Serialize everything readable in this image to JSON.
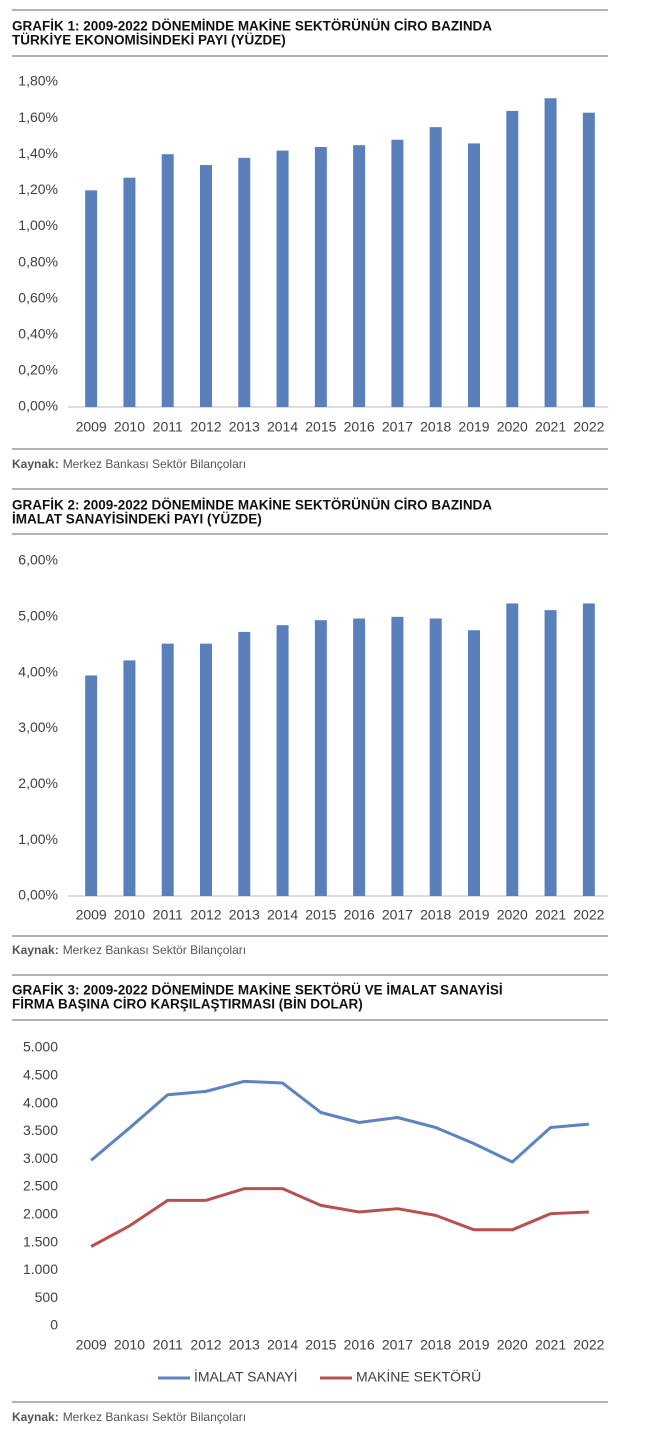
{
  "chart_data": [
    {
      "type": "bar",
      "title": [
        "GRAFİK 1: 2009-2022 DÖNEMİNDE MAKİNE SEKTÖRÜNÜN CİRO BAZINDA",
        "TÜRKİYE EKONOMİSİNDEKİ PAYI (YÜZDE)"
      ],
      "categories": [
        "2009",
        "2010",
        "2011",
        "2012",
        "2013",
        "2014",
        "2015",
        "2016",
        "2017",
        "2018",
        "2019",
        "2020",
        "2021",
        "2022"
      ],
      "values": [
        1.2,
        1.27,
        1.4,
        1.34,
        1.38,
        1.42,
        1.44,
        1.45,
        1.48,
        1.55,
        1.46,
        1.64,
        1.71,
        1.63
      ],
      "color": "#5a80bb",
      "ylim": [
        0,
        1.8
      ],
      "yticks": [
        {
          "value": 0,
          "label": "0,00%"
        },
        {
          "value": 0.2,
          "label": "0,20%"
        },
        {
          "value": 0.4,
          "label": "0,40%"
        },
        {
          "value": 0.6,
          "label": "0,60%"
        },
        {
          "value": 0.8,
          "label": "0,80%"
        },
        {
          "value": 1.0,
          "label": "1,00%"
        },
        {
          "value": 1.2,
          "label": "1,20%"
        },
        {
          "value": 1.4,
          "label": "1,40%"
        },
        {
          "value": 1.6,
          "label": "1,60%"
        },
        {
          "value": 1.8,
          "label": "1,80%"
        }
      ],
      "source": {
        "label": "Kaynak:",
        "text": "Merkez Bankası Sektör Bilançoları"
      }
    },
    {
      "type": "bar",
      "title": [
        "GRAFİK 2: 2009-2022 DÖNEMİNDE MAKİNE SEKTÖRÜNÜN CİRO BAZINDA",
        "İMALAT SANAYİSİNDEKİ PAYI (YÜZDE)"
      ],
      "categories": [
        "2009",
        "2010",
        "2011",
        "2012",
        "2013",
        "2014",
        "2015",
        "2016",
        "2017",
        "2018",
        "2019",
        "2020",
        "2021",
        "2022"
      ],
      "values": [
        3.95,
        4.22,
        4.52,
        4.52,
        4.73,
        4.85,
        4.94,
        4.97,
        5.0,
        4.97,
        4.76,
        5.24,
        5.12,
        5.24
      ],
      "color": "#5a80bb",
      "ylim": [
        0,
        6
      ],
      "yticks": [
        {
          "value": 0,
          "label": "0,00%"
        },
        {
          "value": 1,
          "label": "1,00%"
        },
        {
          "value": 2,
          "label": "2,00%"
        },
        {
          "value": 3,
          "label": "3,00%"
        },
        {
          "value": 4,
          "label": "4,00%"
        },
        {
          "value": 5,
          "label": "5,00%"
        },
        {
          "value": 6,
          "label": "6,00%"
        }
      ],
      "source": {
        "label": "Kaynak:",
        "text": "Merkez Bankası Sektör Bilançoları"
      }
    },
    {
      "type": "line",
      "title": [
        "GRAFİK 3: 2009-2022 DÖNEMİNDE MAKİNE SEKTÖRÜ VE İMALAT SANAYİSİ",
        "FİRMA BAŞINA CİRO KARŞILAŞTIRMASI (BİN DOLAR)"
      ],
      "categories": [
        "2009",
        "2010",
        "2011",
        "2012",
        "2013",
        "2014",
        "2015",
        "2016",
        "2017",
        "2018",
        "2019",
        "2020",
        "2021",
        "2022"
      ],
      "series": [
        {
          "name": "İMALAT SANAYİ",
          "color": "#5b84c0",
          "values": [
            2980,
            3560,
            4160,
            4220,
            4400,
            4370,
            3840,
            3660,
            3750,
            3570,
            3280,
            2950,
            3570,
            3630
          ]
        },
        {
          "name": "MAKİNE SEKTÖRÜ",
          "color": "#b9504e",
          "values": [
            1430,
            1800,
            2260,
            2260,
            2470,
            2470,
            2170,
            2050,
            2110,
            1990,
            1730,
            1730,
            2020,
            2050
          ]
        }
      ],
      "ylim": [
        0,
        5000
      ],
      "yticks": [
        0,
        500,
        {
          "value": 1000,
          "label": "1.000"
        },
        {
          "value": 1500,
          "label": "1.500"
        },
        {
          "value": 2000,
          "label": "2.000"
        },
        {
          "value": 2500,
          "label": "2.500"
        },
        {
          "value": 3000,
          "label": "3.000"
        },
        {
          "value": 3500,
          "label": "3.500"
        },
        {
          "value": 4000,
          "label": "4.000"
        },
        {
          "value": 4500,
          "label": "4.500"
        },
        {
          "value": 5000,
          "label": "5.000"
        }
      ],
      "legend": "bottom",
      "source": {
        "label": "Kaynak:",
        "text": "Merkez Bankası Sektör Bilançoları"
      }
    }
  ]
}
